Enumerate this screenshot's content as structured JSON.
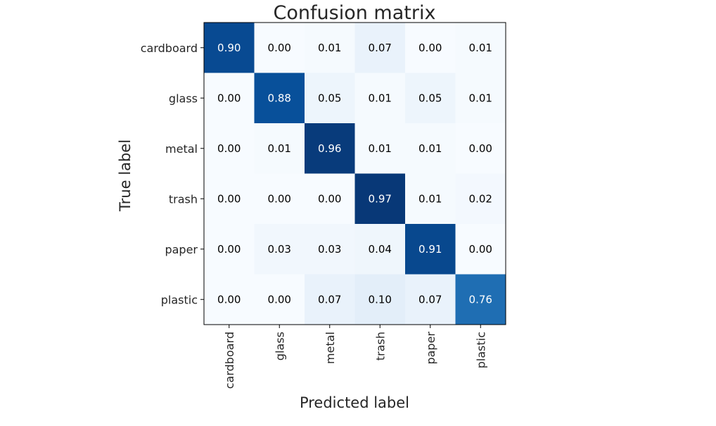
{
  "chart_data": {
    "type": "heatmap",
    "title": "Confusion matrix",
    "xlabel": "Predicted label",
    "ylabel": "True label",
    "x_categories": [
      "cardboard",
      "glass",
      "metal",
      "trash",
      "paper",
      "plastic"
    ],
    "y_categories": [
      "cardboard",
      "glass",
      "metal",
      "trash",
      "paper",
      "plastic"
    ],
    "values": [
      [
        0.9,
        0.0,
        0.01,
        0.07,
        0.0,
        0.01
      ],
      [
        0.0,
        0.88,
        0.05,
        0.01,
        0.05,
        0.01
      ],
      [
        0.0,
        0.01,
        0.96,
        0.01,
        0.01,
        0.0
      ],
      [
        0.0,
        0.0,
        0.0,
        0.97,
        0.01,
        0.02
      ],
      [
        0.0,
        0.03,
        0.03,
        0.04,
        0.91,
        0.0
      ],
      [
        0.0,
        0.0,
        0.07,
        0.1,
        0.07,
        0.76
      ]
    ],
    "value_format": "2 decimals",
    "colormap": "Blues",
    "vmin": 0,
    "vmax": 1,
    "grid": false,
    "legend": "none"
  }
}
